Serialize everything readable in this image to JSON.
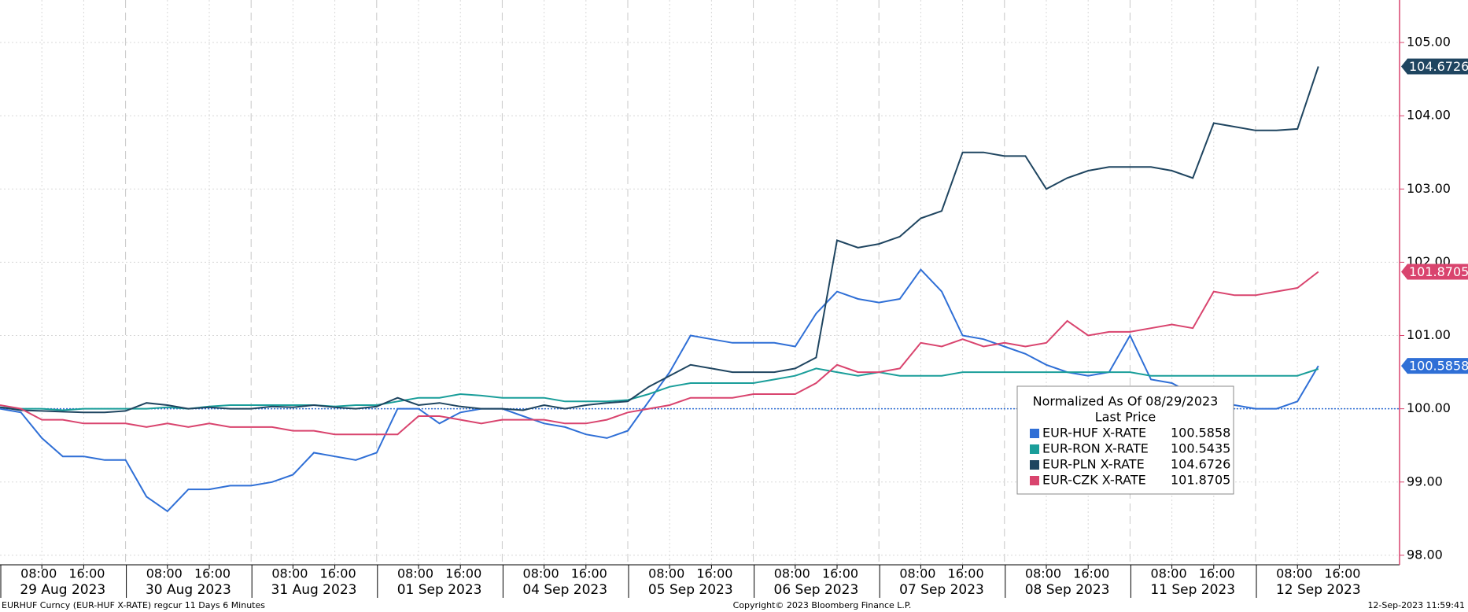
{
  "chart_data": {
    "type": "line",
    "categories": [
      "29 Aug 2023",
      "30 Aug 2023",
      "31 Aug 2023",
      "01 Sep 2023",
      "04 Sep 2023",
      "05 Sep 2023",
      "06 Sep 2023",
      "07 Sep 2023",
      "08 Sep 2023",
      "11 Sep 2023",
      "12 Sep 2023"
    ],
    "hour_ticks": [
      "08:00",
      "16:00"
    ],
    "x": [
      "29 Aug 2023 00:00",
      "29 Aug 2023 04:00",
      "29 Aug 2023 08:00",
      "29 Aug 2023 12:00",
      "29 Aug 2023 16:00",
      "29 Aug 2023 20:00",
      "30 Aug 2023 00:00",
      "30 Aug 2023 04:00",
      "30 Aug 2023 08:00",
      "30 Aug 2023 12:00",
      "30 Aug 2023 16:00",
      "30 Aug 2023 20:00",
      "31 Aug 2023 00:00",
      "31 Aug 2023 04:00",
      "31 Aug 2023 08:00",
      "31 Aug 2023 12:00",
      "31 Aug 2023 16:00",
      "31 Aug 2023 20:00",
      "01 Sep 2023 00:00",
      "01 Sep 2023 04:00",
      "01 Sep 2023 08:00",
      "01 Sep 2023 12:00",
      "01 Sep 2023 16:00",
      "01 Sep 2023 20:00",
      "04 Sep 2023 00:00",
      "04 Sep 2023 04:00",
      "04 Sep 2023 08:00",
      "04 Sep 2023 12:00",
      "04 Sep 2023 16:00",
      "04 Sep 2023 20:00",
      "05 Sep 2023 00:00",
      "05 Sep 2023 04:00",
      "05 Sep 2023 08:00",
      "05 Sep 2023 12:00",
      "05 Sep 2023 16:00",
      "05 Sep 2023 20:00",
      "06 Sep 2023 00:00",
      "06 Sep 2023 04:00",
      "06 Sep 2023 08:00",
      "06 Sep 2023 12:00",
      "06 Sep 2023 16:00",
      "06 Sep 2023 20:00",
      "07 Sep 2023 00:00",
      "07 Sep 2023 04:00",
      "07 Sep 2023 08:00",
      "07 Sep 2023 12:00",
      "07 Sep 2023 16:00",
      "07 Sep 2023 20:00",
      "08 Sep 2023 00:00",
      "08 Sep 2023 04:00",
      "08 Sep 2023 08:00",
      "08 Sep 2023 12:00",
      "08 Sep 2023 16:00",
      "08 Sep 2023 20:00",
      "11 Sep 2023 00:00",
      "11 Sep 2023 04:00",
      "11 Sep 2023 08:00",
      "11 Sep 2023 12:00",
      "11 Sep 2023 16:00",
      "11 Sep 2023 20:00",
      "12 Sep 2023 00:00",
      "12 Sep 2023 04:00",
      "12 Sep 2023 08:00",
      "12 Sep 2023 12:00"
    ],
    "series": [
      {
        "name": "EUR-HUF X-RATE",
        "color": "#2f6fd6",
        "tag": true,
        "values": [
          100.0,
          99.95,
          99.6,
          99.35,
          99.35,
          99.3,
          99.3,
          98.8,
          98.6,
          98.9,
          98.9,
          98.95,
          98.95,
          99.0,
          99.1,
          99.4,
          99.35,
          99.3,
          99.4,
          100.0,
          100.0,
          99.8,
          99.95,
          100.0,
          100.0,
          99.9,
          99.8,
          99.75,
          99.65,
          99.6,
          99.7,
          100.1,
          100.5,
          101.0,
          100.95,
          100.9,
          100.9,
          100.9,
          100.85,
          101.3,
          101.6,
          101.5,
          101.45,
          101.5,
          101.9,
          101.6,
          101.0,
          100.95,
          100.85,
          100.75,
          100.6,
          100.5,
          100.45,
          100.5,
          101.0,
          100.4,
          100.35,
          100.2,
          100.1,
          100.05,
          100.0,
          100.0,
          100.1,
          100.5858
        ]
      },
      {
        "name": "EUR-RON X-RATE",
        "color": "#1a9e9a",
        "tag": false,
        "values": [
          100.02,
          100.0,
          100.0,
          99.98,
          100.0,
          100.0,
          100.0,
          100.0,
          100.02,
          100.0,
          100.03,
          100.05,
          100.05,
          100.05,
          100.05,
          100.05,
          100.03,
          100.05,
          100.05,
          100.1,
          100.15,
          100.15,
          100.2,
          100.18,
          100.15,
          100.15,
          100.15,
          100.1,
          100.1,
          100.1,
          100.12,
          100.2,
          100.3,
          100.35,
          100.35,
          100.35,
          100.35,
          100.4,
          100.45,
          100.55,
          100.5,
          100.45,
          100.5,
          100.45,
          100.45,
          100.45,
          100.5,
          100.5,
          100.5,
          100.5,
          100.5,
          100.5,
          100.5,
          100.5,
          100.5,
          100.45,
          100.45,
          100.45,
          100.45,
          100.45,
          100.45,
          100.45,
          100.45,
          100.5435
        ]
      },
      {
        "name": "EUR-PLN X-RATE",
        "color": "#1f4560",
        "tag": true,
        "values": [
          100.02,
          99.98,
          99.97,
          99.96,
          99.95,
          99.95,
          99.97,
          100.08,
          100.05,
          100.0,
          100.02,
          100.0,
          100.0,
          100.03,
          100.02,
          100.05,
          100.02,
          100.0,
          100.03,
          100.15,
          100.05,
          100.08,
          100.03,
          100.0,
          100.0,
          99.98,
          100.05,
          100.0,
          100.05,
          100.08,
          100.1,
          100.3,
          100.45,
          100.6,
          100.55,
          100.5,
          100.5,
          100.5,
          100.55,
          100.7,
          102.3,
          102.2,
          102.25,
          102.35,
          102.6,
          102.7,
          103.5,
          103.5,
          103.45,
          103.45,
          103.0,
          103.15,
          103.25,
          103.3,
          103.3,
          103.3,
          103.25,
          103.15,
          103.9,
          103.85,
          103.8,
          103.8,
          103.82,
          104.6726
        ]
      },
      {
        "name": "EUR-CZK X-RATE",
        "color": "#d9446e",
        "tag": true,
        "values": [
          100.05,
          100.0,
          99.85,
          99.85,
          99.8,
          99.8,
          99.8,
          99.75,
          99.8,
          99.75,
          99.8,
          99.75,
          99.75,
          99.75,
          99.7,
          99.7,
          99.65,
          99.65,
          99.65,
          99.65,
          99.9,
          99.9,
          99.85,
          99.8,
          99.85,
          99.85,
          99.85,
          99.8,
          99.8,
          99.85,
          99.95,
          100.0,
          100.05,
          100.15,
          100.15,
          100.15,
          100.2,
          100.2,
          100.2,
          100.35,
          100.6,
          100.5,
          100.5,
          100.55,
          100.9,
          100.85,
          100.95,
          100.85,
          100.9,
          100.85,
          100.9,
          101.2,
          101.0,
          101.05,
          101.05,
          101.1,
          101.15,
          101.1,
          101.6,
          101.55,
          101.55,
          101.6,
          101.65,
          101.8705
        ]
      }
    ],
    "reference_line": 100,
    "ylim": [
      97.87,
      105.58
    ],
    "yticks": [
      {
        "value": 98,
        "label": "98.00"
      },
      {
        "value": 99,
        "label": "99.00"
      },
      {
        "value": 100,
        "label": "100.00"
      },
      {
        "value": 101,
        "label": "101.00"
      },
      {
        "value": 102,
        "label": "102.00"
      },
      {
        "value": 103,
        "label": "103.00"
      },
      {
        "value": 104,
        "label": "104.00"
      },
      {
        "value": 105,
        "label": "105.00"
      }
    ],
    "grid": true,
    "legend": {
      "title": "Normalized As Of 08/29/2023",
      "subtitle": "Last Price"
    },
    "footer": {
      "left": "EURHUF Curncy (EUR-HUF X-RATE) regcur 11 Days 6 Minutes",
      "center": "Copyright© 2023 Bloomberg Finance L.P.",
      "right": "12-Sep-2023 11:59:41"
    }
  }
}
